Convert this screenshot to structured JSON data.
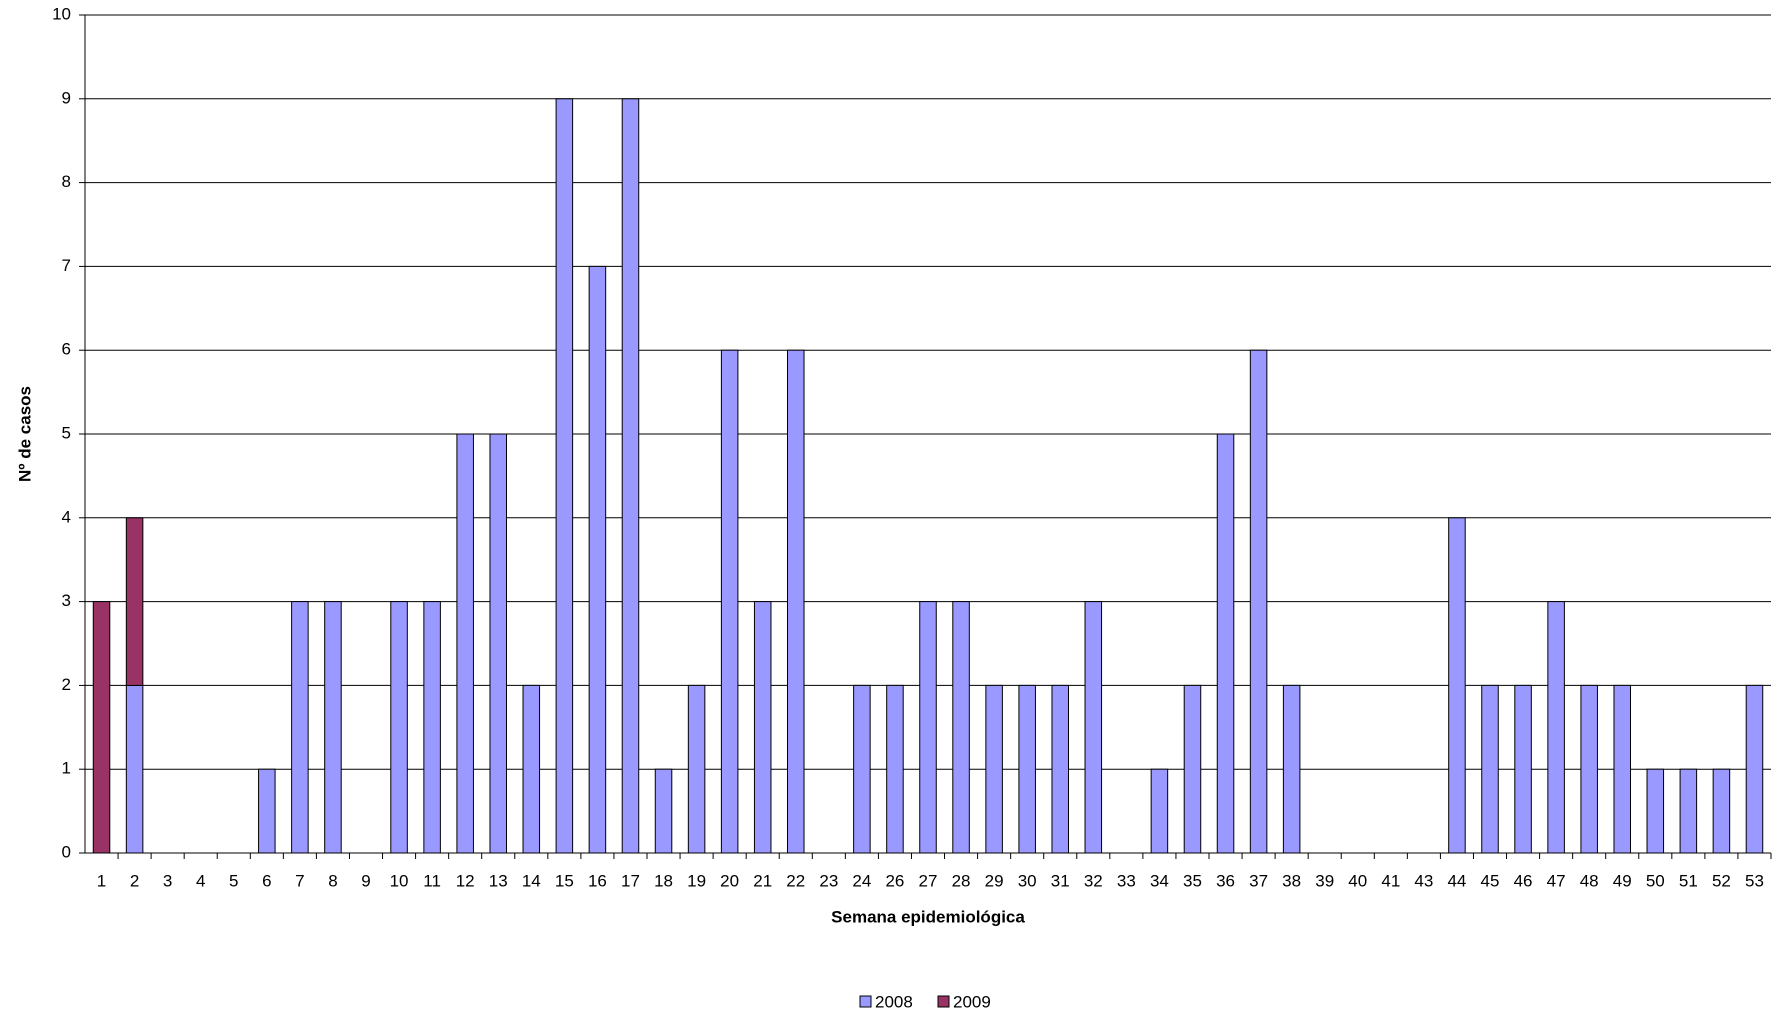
{
  "chart_data": {
    "type": "stacked_bar",
    "x_label": "Semana epidemiológica",
    "y_label": "Nº de casos",
    "categories": [
      "1",
      "2",
      "3",
      "4",
      "5",
      "6",
      "7",
      "8",
      "9",
      "10",
      "11",
      "12",
      "13",
      "14",
      "15",
      "16",
      "17",
      "18",
      "19",
      "20",
      "21",
      "22",
      "23",
      "24",
      "26",
      "27",
      "28",
      "29",
      "30",
      "31",
      "32",
      "33",
      "34",
      "35",
      "36",
      "37",
      "38",
      "39",
      "40",
      "41",
      "43",
      "44",
      "45",
      "46",
      "47",
      "48",
      "49",
      "50",
      "51",
      "52",
      "53"
    ],
    "series": [
      {
        "name": "2008",
        "color": "#9999ff",
        "values": [
          0,
          2,
          0,
          0,
          0,
          1,
          3,
          3,
          0,
          3,
          3,
          5,
          5,
          2,
          9,
          7,
          9,
          1,
          2,
          6,
          3,
          6,
          0,
          2,
          2,
          3,
          3,
          2,
          2,
          2,
          3,
          0,
          1,
          2,
          5,
          6,
          2,
          0,
          0,
          0,
          0,
          4,
          2,
          2,
          3,
          2,
          2,
          1,
          1,
          1,
          2
        ]
      },
      {
        "name": "2009",
        "color": "#993366",
        "values": [
          3,
          2,
          0,
          0,
          0,
          0,
          0,
          0,
          0,
          0,
          0,
          0,
          0,
          0,
          0,
          0,
          0,
          0,
          0,
          0,
          0,
          0,
          0,
          0,
          0,
          0,
          0,
          0,
          0,
          0,
          0,
          0,
          0,
          0,
          0,
          0,
          0,
          0,
          0,
          0,
          0,
          0,
          0,
          0,
          0,
          0,
          0,
          0,
          0,
          0,
          0
        ]
      }
    ],
    "ylim": [
      0,
      10
    ],
    "yticks": [
      0,
      1,
      2,
      3,
      4,
      5,
      6,
      7,
      8,
      9,
      10
    ],
    "grid": true,
    "legend": "bottom"
  }
}
